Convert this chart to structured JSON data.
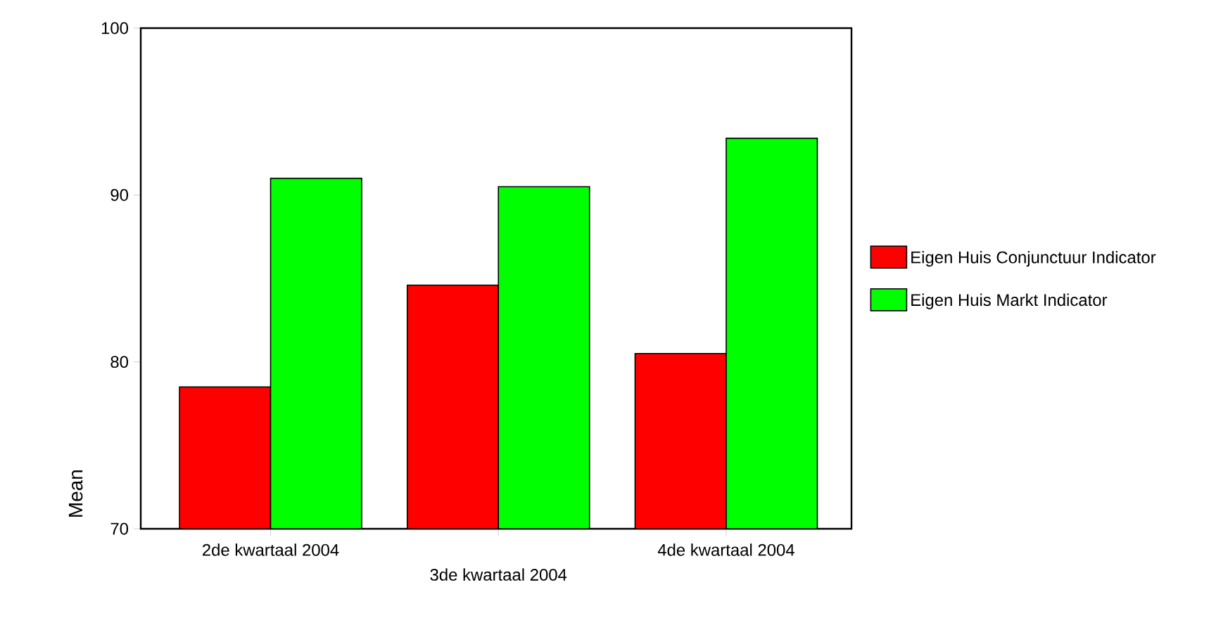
{
  "chart_data": {
    "type": "bar",
    "ylabel": "Mean",
    "categories": [
      "2de kwartaal 2004",
      "3de kwartaal 2004",
      "4de kwartaal 2004"
    ],
    "series": [
      {
        "name": "Eigen Huis Conjunctuur Indicator",
        "color": "#ff0000",
        "values": [
          78.5,
          84.6,
          80.5
        ]
      },
      {
        "name": "Eigen Huis Markt Indicator",
        "color": "#00ff00",
        "values": [
          91.0,
          90.5,
          93.4
        ]
      }
    ],
    "ylim": [
      70,
      100
    ],
    "yticks": [
      70,
      80,
      90,
      100
    ],
    "grid": false,
    "legend": "right"
  }
}
